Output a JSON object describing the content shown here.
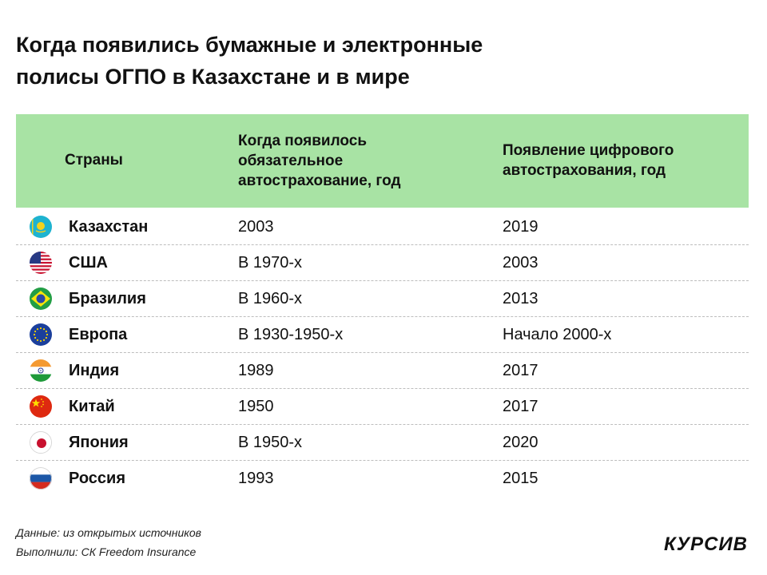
{
  "title": {
    "line1": "Когда появились бумажные и электронные",
    "line2": "полисы ОГПО в Казахстане и в мире"
  },
  "header": {
    "col1": "Страны",
    "col2": [
      "Когда появилось",
      "обязательное",
      "автострахование, год"
    ],
    "col3": [
      "Появление цифрового",
      "автострахования, год"
    ]
  },
  "rows": [
    {
      "country": "Казахстан",
      "flag": "kazakhstan-flag-icon",
      "mandatory": "2003",
      "digital": "2019"
    },
    {
      "country": "США",
      "flag": "usa-flag-icon",
      "mandatory": "В 1970-х",
      "digital": "2003"
    },
    {
      "country": "Бразилия",
      "flag": "brazil-flag-icon",
      "mandatory": "В 1960-х",
      "digital": "2013"
    },
    {
      "country": "Европа",
      "flag": "eu-flag-icon",
      "mandatory": "В 1930-1950-х",
      "digital": "Начало 2000-х"
    },
    {
      "country": "Индия",
      "flag": "india-flag-icon",
      "mandatory": "1989",
      "digital": "2017"
    },
    {
      "country": "Китай",
      "flag": "china-flag-icon",
      "mandatory": "1950",
      "digital": "2017"
    },
    {
      "country": "Япония",
      "flag": "japan-flag-icon",
      "mandatory": "В 1950-х",
      "digital": "2020"
    },
    {
      "country": "Россия",
      "flag": "russia-flag-icon",
      "mandatory": "1993",
      "digital": "2015"
    }
  ],
  "footer": {
    "source": "Данные: из открытых источников",
    "credits": "Выполнили: СК Freedom Insurance"
  },
  "logo": "КУРСИВ",
  "colors": {
    "header_bg": "#a8e3a4",
    "text": "#111111"
  }
}
